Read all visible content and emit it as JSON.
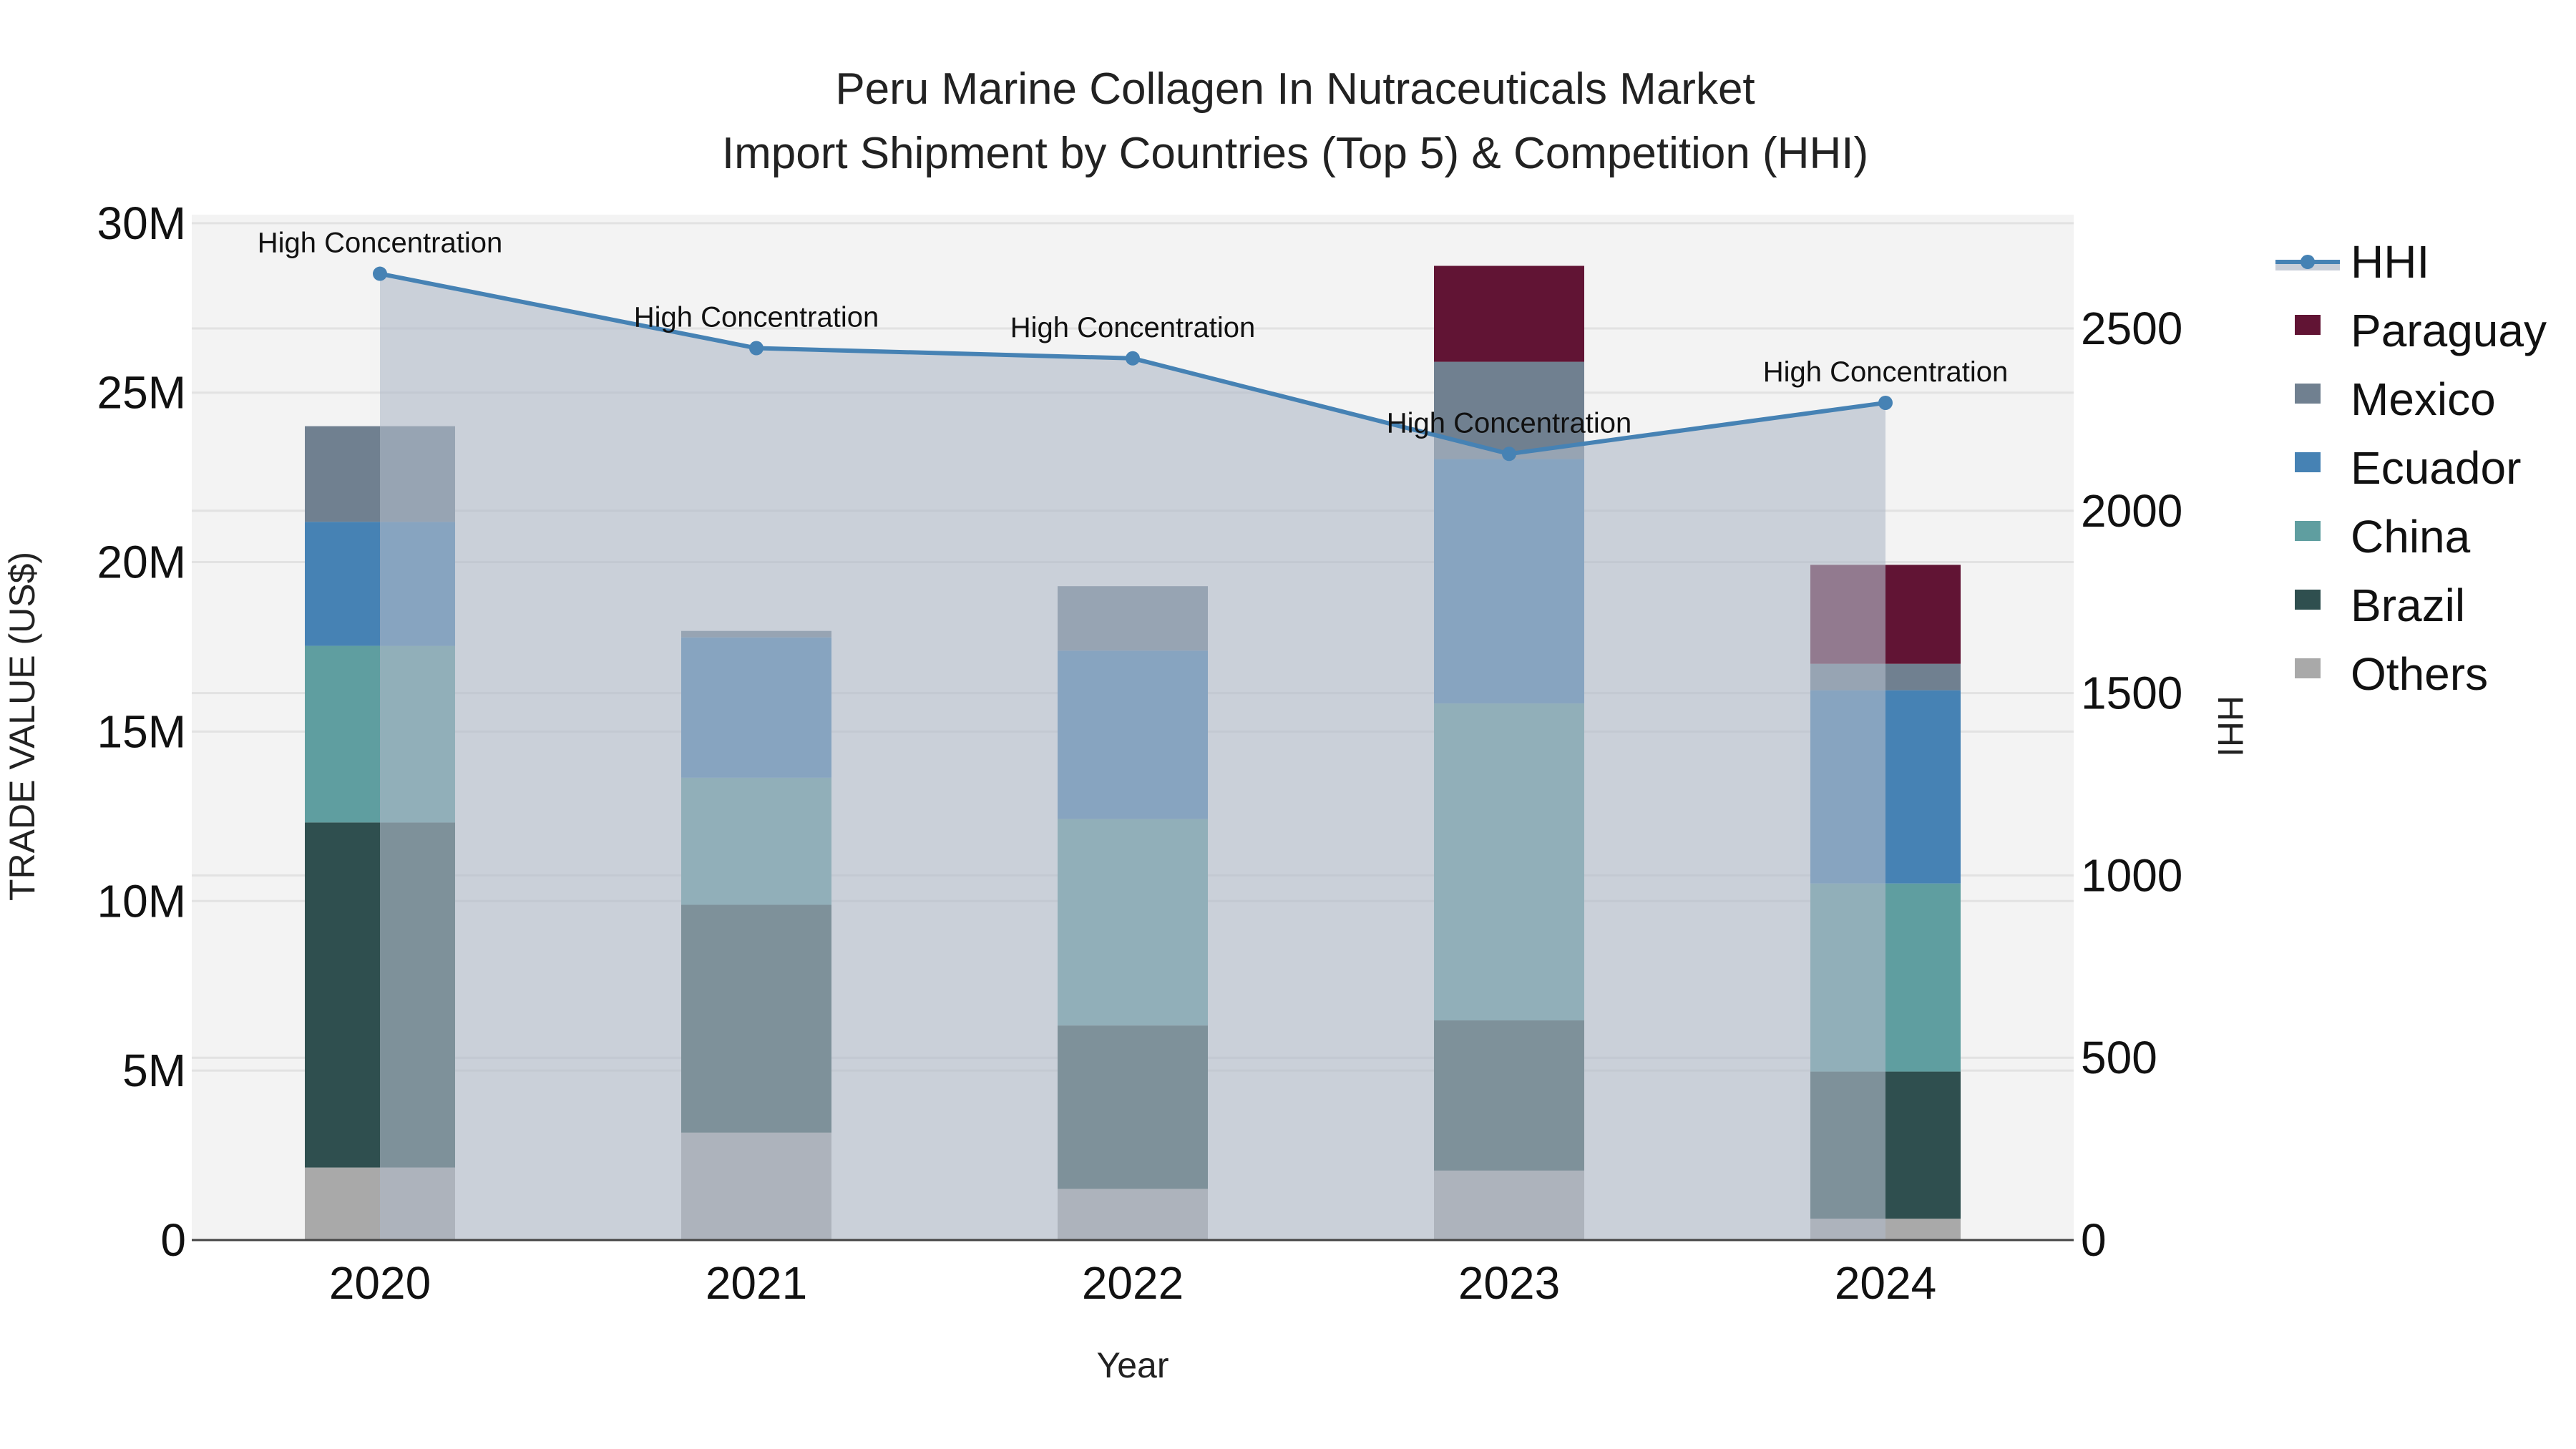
{
  "chart_data": {
    "type": "bar",
    "subtype": "stacked-bar-with-line-area",
    "title": "Peru Marine Collagen In Nutraceuticals Market",
    "subtitle": "Import Shipment by Countries (Top 5) & Competition (HHI)",
    "xlabel": "Year",
    "ylabel": "TRADE VALUE (US$)",
    "y2label": "HHI",
    "categories": [
      "2020",
      "2021",
      "2022",
      "2023",
      "2024"
    ],
    "ylim": [
      0,
      30250000
    ],
    "y2lim": [
      0,
      2812
    ],
    "yticks": [
      {
        "value": 0,
        "label": "0"
      },
      {
        "value": 5000000,
        "label": "5M"
      },
      {
        "value": 10000000,
        "label": "10M"
      },
      {
        "value": 15000000,
        "label": "15M"
      },
      {
        "value": 20000000,
        "label": "20M"
      },
      {
        "value": 25000000,
        "label": "25M"
      },
      {
        "value": 30000000,
        "label": "30M"
      }
    ],
    "y2ticks": [
      {
        "value": 0,
        "label": "0"
      },
      {
        "value": 500,
        "label": "500"
      },
      {
        "value": 1000,
        "label": "1000"
      },
      {
        "value": 1500,
        "label": "1500"
      },
      {
        "value": 2000,
        "label": "2000"
      },
      {
        "value": 2500,
        "label": "2500"
      }
    ],
    "series": [
      {
        "name": "Others",
        "color": "#a9a9a9",
        "values": [
          2140000,
          3170000,
          1510000,
          2050000,
          630000
        ]
      },
      {
        "name": "Brazil",
        "color": "#2f4f4f",
        "values": [
          10180000,
          6720000,
          4820000,
          4430000,
          4340000
        ]
      },
      {
        "name": "China",
        "color": "#5f9ea0",
        "values": [
          5210000,
          3750000,
          6090000,
          9350000,
          5550000
        ]
      },
      {
        "name": "Ecuador",
        "color": "#4682b4",
        "values": [
          3660000,
          4140000,
          4970000,
          7210000,
          5700000
        ]
      },
      {
        "name": "Mexico",
        "color": "#708090",
        "values": [
          2820000,
          190000,
          1900000,
          2870000,
          780000
        ]
      },
      {
        "name": "Paraguay",
        "color": "#611434",
        "values": [
          0,
          0,
          0,
          2830000,
          2920000
        ]
      }
    ],
    "line_series": {
      "name": "HHI",
      "axis": "y2",
      "color": "#4682b4",
      "fill_color": "rgba(176,186,200,0.62)",
      "values": [
        2650,
        2446,
        2418,
        2156,
        2296
      ],
      "annotations": [
        "High Concentration",
        "High Concentration",
        "High Concentration",
        "High Concentration",
        "High Concentration"
      ]
    },
    "legend": {
      "position": "right",
      "items": [
        "HHI",
        "Paraguay",
        "Mexico",
        "Ecuador",
        "China",
        "Brazil",
        "Others"
      ]
    },
    "grid": true,
    "plot_bgcolor": "#f3f3f3"
  }
}
